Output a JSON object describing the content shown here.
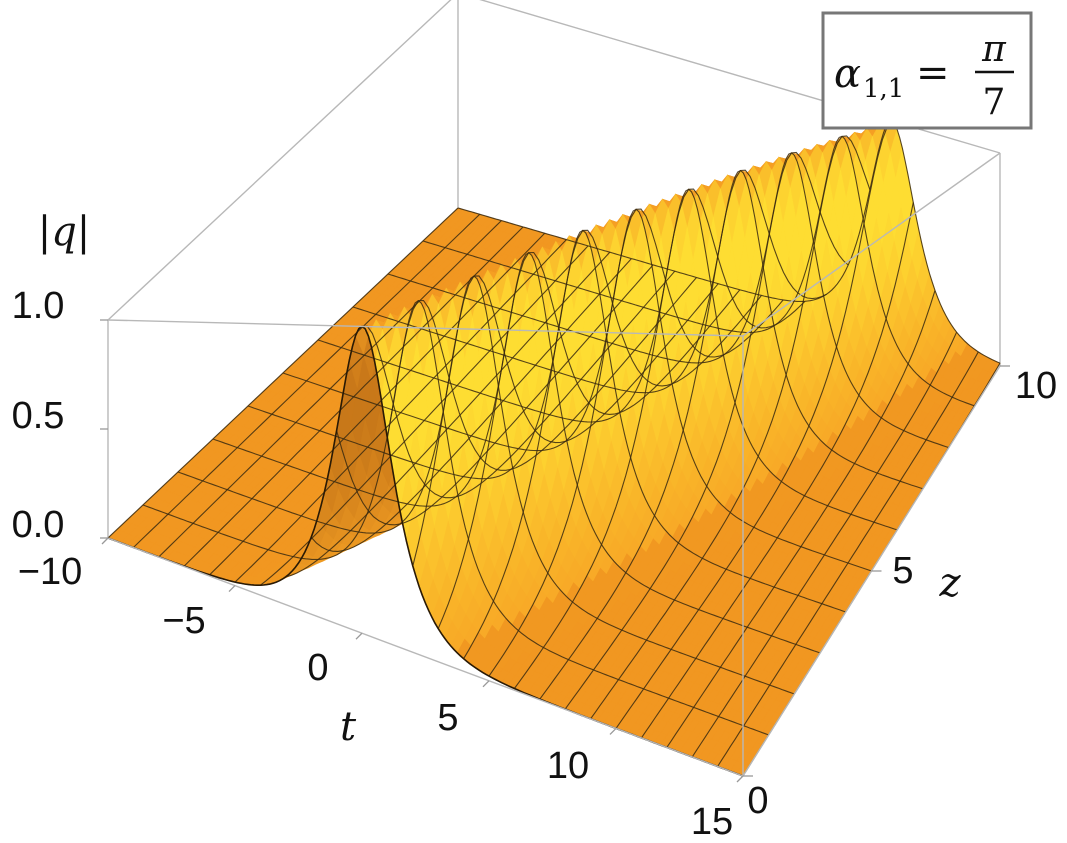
{
  "chart_data": {
    "type": "surface",
    "function": "|q| = sech(t - z)",
    "z_label": "|q|",
    "x_label": "t",
    "y_label": "z",
    "x_range": [
      -10,
      15
    ],
    "y_range": [
      0,
      10
    ],
    "z_range": [
      0.0,
      1.0
    ],
    "x_ticks": [
      "-10",
      "-5",
      "0",
      "5",
      "10",
      "15"
    ],
    "y_ticks": [
      "0",
      "5",
      "10"
    ],
    "z_ticks": [
      "0.0",
      "0.5",
      "1.0"
    ],
    "legend": {
      "lhs_symbol": "α",
      "lhs_subscript": "1,1",
      "relation": "=",
      "numerator": "π",
      "denominator": "7"
    },
    "colors": {
      "surface_dark": "#e8861a",
      "surface_mid": "#f7a325",
      "surface_light": "#ffe534",
      "mesh": "#3a2a10",
      "box": "#b8b8b8",
      "legend_border": "#777777"
    }
  }
}
